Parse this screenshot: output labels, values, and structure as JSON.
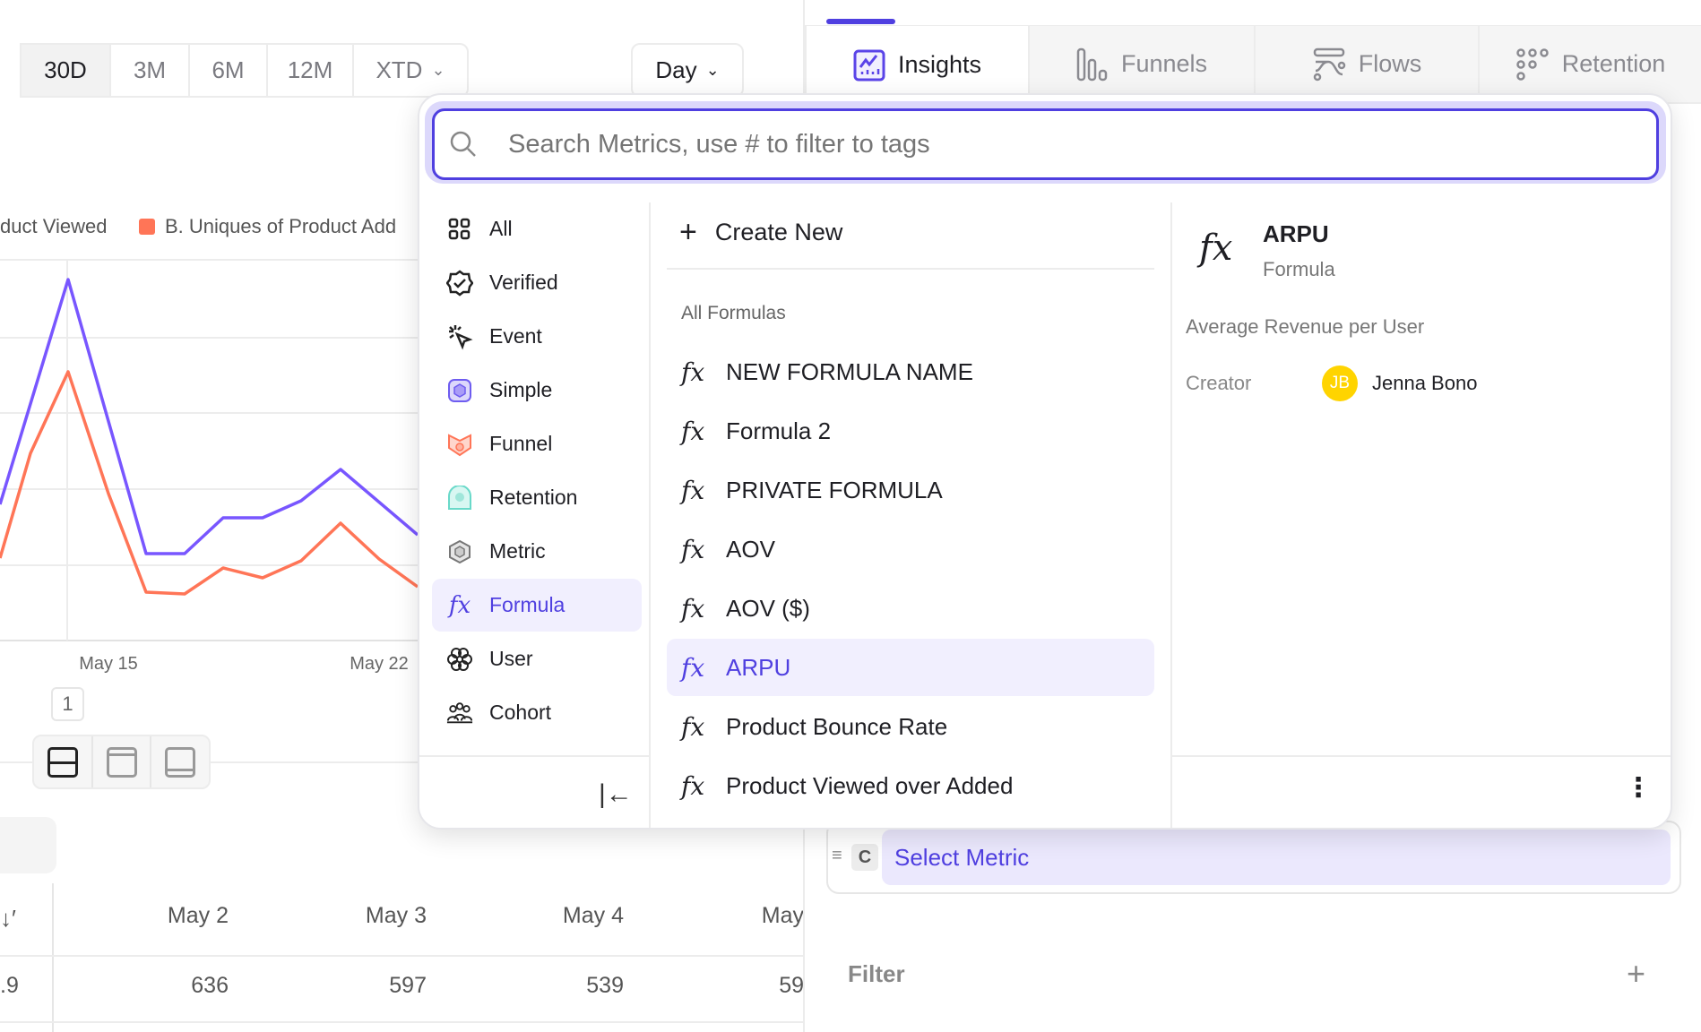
{
  "time_range": {
    "options": [
      "30D",
      "3M",
      "6M",
      "12M",
      "XTD"
    ],
    "selected": "30D"
  },
  "interval": {
    "value": "Day"
  },
  "report_tabs": [
    {
      "label": "Insights",
      "icon": "insights-icon",
      "selected": true
    },
    {
      "label": "Funnels",
      "icon": "funnels-icon"
    },
    {
      "label": "Flows",
      "icon": "flows-icon"
    },
    {
      "label": "Retention",
      "icon": "retention-icon"
    }
  ],
  "chart": {
    "legend": [
      "duct Viewed",
      "B. Uniques of Product Add"
    ],
    "x_ticks": [
      "May 15",
      "May 22"
    ],
    "colors": {
      "series_a": "#7856ff",
      "series_b": "#ff7557"
    },
    "page": "1"
  },
  "table": {
    "headers": [
      "May 2",
      "May 3",
      "May 4",
      "May"
    ],
    "row": [
      ".9",
      "636",
      "597",
      "539",
      "59"
    ]
  },
  "metric_row": {
    "letter": "C",
    "label": "Select Metric"
  },
  "filter": {
    "label": "Filter"
  },
  "picker": {
    "search_placeholder": "Search Metrics, use # to filter to tags",
    "nav": [
      {
        "label": "All",
        "icon": "grid-icon"
      },
      {
        "label": "Verified",
        "icon": "verified-badge-icon"
      },
      {
        "label": "Event",
        "icon": "cursor-click-icon"
      },
      {
        "label": "Simple",
        "icon": "simple-metric-icon"
      },
      {
        "label": "Funnel",
        "icon": "funnel-icon"
      },
      {
        "label": "Retention",
        "icon": "retention-icon"
      },
      {
        "label": "Metric",
        "icon": "hexagon-icon"
      },
      {
        "label": "Formula",
        "icon": "fx-icon",
        "selected": true
      },
      {
        "label": "User",
        "icon": "user-icon"
      },
      {
        "label": "Cohort",
        "icon": "cohort-icon"
      }
    ],
    "create_new": "Create New",
    "section_title": "All Formulas",
    "formulas": [
      "NEW FORMULA NAME",
      "Formula 2",
      "PRIVATE FORMULA",
      "AOV",
      "AOV ($)",
      "ARPU",
      "Product Bounce Rate",
      "Product Viewed over Added"
    ],
    "selected_formula": "ARPU",
    "detail": {
      "title": "ARPU",
      "type": "Formula",
      "description": "Average Revenue per User",
      "creator_label": "Creator",
      "creator_initials": "JB",
      "creator_name": "Jenna Bono"
    },
    "accent": "#4f3fe0"
  }
}
